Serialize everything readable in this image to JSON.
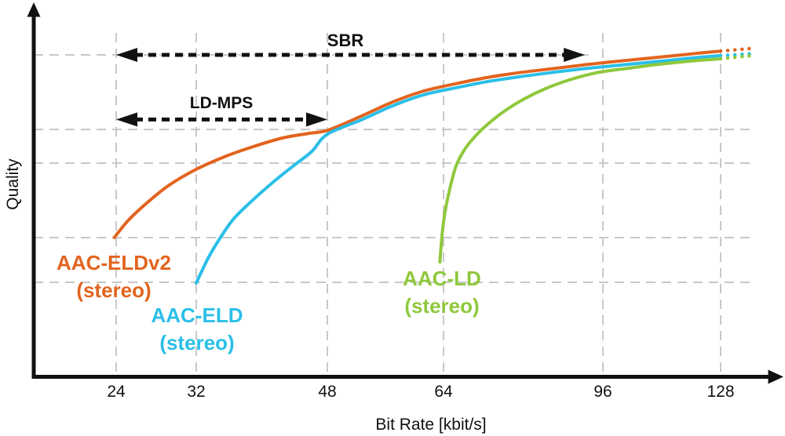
{
  "chart_data": {
    "type": "line",
    "title": "",
    "xlabel": "Bit Rate [kbit/s]",
    "ylabel": "Quality",
    "x_ticks": [
      24,
      32,
      48,
      64,
      96,
      128
    ],
    "x_axis_note": "nonlinear schematic bit-rate axis, no y tick values shown",
    "y_range": [
      0,
      100
    ],
    "grid": {
      "vertical_at_x_ticks": true,
      "horizontal_quality_levels": [
        93.6,
        71.9,
        62.1,
        40.4,
        27.4
      ]
    },
    "layout": {
      "grid_color": "#c8c8c8",
      "axis_color": "#111111",
      "background": "#ffffff",
      "legend": "labels placed next to curves"
    },
    "series": [
      {
        "id": "aac-eldv2",
        "name": "AAC-ELDv2 (stereo)",
        "color": "#e2641e",
        "points": [
          [
            23.8,
            40.4
          ],
          [
            25.3,
            45.7
          ],
          [
            27.3,
            51.1
          ],
          [
            29.3,
            55.7
          ],
          [
            32,
            60.3
          ],
          [
            35.4,
            63.9
          ],
          [
            38.7,
            66.7
          ],
          [
            42.5,
            69.4
          ],
          [
            45.9,
            70.8
          ],
          [
            48.1,
            71.7
          ],
          [
            52.7,
            75.8
          ],
          [
            57,
            79.9
          ],
          [
            61.3,
            83.1
          ],
          [
            66.4,
            85.2
          ],
          [
            72.7,
            87.0
          ],
          [
            79,
            88.4
          ],
          [
            85.3,
            89.5
          ],
          [
            91.6,
            90.6
          ],
          [
            98.6,
            91.6
          ],
          [
            107.1,
            92.5
          ],
          [
            115.6,
            93.4
          ],
          [
            122,
            94.1
          ],
          [
            128,
            94.7
          ]
        ],
        "projection": [
          [
            128,
            94.7
          ],
          [
            136.5,
            95.5
          ]
        ]
      },
      {
        "id": "aac-eld",
        "name": "AAC-ELD (stereo)",
        "color": "#2abfe8",
        "points": [
          [
            32,
            27.2
          ],
          [
            33.4,
            34.2
          ],
          [
            34.7,
            39.5
          ],
          [
            36.5,
            45.7
          ],
          [
            38.7,
            50.9
          ],
          [
            41.3,
            56.4
          ],
          [
            43.8,
            61.2
          ],
          [
            46.1,
            65.5
          ],
          [
            48,
            70.5
          ],
          [
            52.7,
            74.7
          ],
          [
            57,
            78.8
          ],
          [
            61.3,
            82.0
          ],
          [
            66.4,
            84.0
          ],
          [
            72.7,
            85.8
          ],
          [
            79,
            87.2
          ],
          [
            85.3,
            88.4
          ],
          [
            91.6,
            89.5
          ],
          [
            98.6,
            90.4
          ],
          [
            107.1,
            91.3
          ],
          [
            115.6,
            92.2
          ],
          [
            122,
            92.9
          ],
          [
            128,
            93.4
          ]
        ],
        "projection": [
          [
            128,
            93.4
          ],
          [
            137.5,
            94.0
          ]
        ]
      },
      {
        "id": "aac-ld",
        "name": "AAC-LD (stereo)",
        "color": "#8fc83c",
        "points": [
          [
            63.5,
            33.3
          ],
          [
            63.8,
            41.1
          ],
          [
            64.3,
            47.9
          ],
          [
            65.3,
            54.8
          ],
          [
            66.5,
            61.2
          ],
          [
            68.3,
            66.2
          ],
          [
            70.6,
            70.3
          ],
          [
            73.5,
            74.2
          ],
          [
            76.6,
            77.6
          ],
          [
            80.2,
            80.8
          ],
          [
            84.5,
            83.8
          ],
          [
            89.2,
            86.3
          ],
          [
            94.7,
            88.4
          ],
          [
            102.8,
            89.7
          ],
          [
            111.4,
            90.9
          ],
          [
            119.9,
            91.8
          ],
          [
            128,
            92.5
          ]
        ],
        "projection": [
          [
            128,
            92.5
          ],
          [
            136.5,
            93.4
          ]
        ]
      }
    ],
    "annotations": [
      {
        "label": "SBR",
        "type": "double-arrow",
        "from_x": 24,
        "to_x": 92.4,
        "quality": 93.6
      },
      {
        "label": "LD-MPS",
        "type": "double-arrow",
        "from_x": 24,
        "to_x": 48,
        "quality": 74.8
      }
    ]
  },
  "series_labels": [
    {
      "line1": "AAC-ELDv2",
      "line2": "(stereo)"
    },
    {
      "line1": "AAC-ELD",
      "line2": "(stereo)"
    },
    {
      "line1": "AAC-LD",
      "line2": "(stereo)"
    }
  ]
}
